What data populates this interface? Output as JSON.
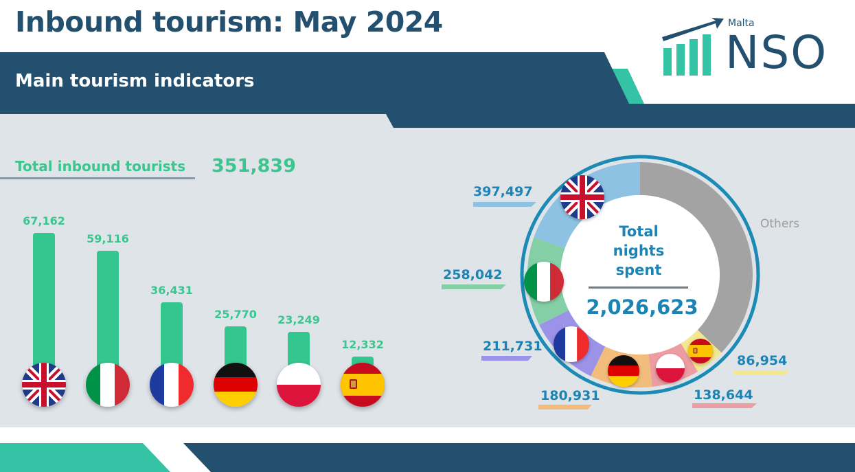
{
  "header": {
    "title": "Inbound tourism: May 2024",
    "subtitle": "Main tourism indicators",
    "logo_small": "Malta",
    "logo_text": "NSO"
  },
  "colors": {
    "navy": "#22506e",
    "teal": "#34c3a5",
    "green": "#33c68f",
    "panel": "#dfe4e9",
    "blue_text": "#1c84b5"
  },
  "total_tourists": {
    "label": "Total inbound tourists",
    "value": "351,839"
  },
  "donut_center": {
    "title": "Total nights spent",
    "value": "2,026,623",
    "others_label": "Others"
  },
  "chart_data": [
    {
      "type": "bar",
      "categories": [
        "United Kingdom",
        "Italy",
        "France",
        "Germany",
        "Poland",
        "Spain"
      ],
      "values": [
        67162,
        59116,
        36431,
        25770,
        23249,
        12332
      ],
      "labels": [
        "67,162",
        "59,116",
        "36,431",
        "25,770",
        "23,249",
        "12,332"
      ],
      "category_icons": [
        "uk-flag-icon",
        "italy-flag-icon",
        "france-flag-icon",
        "germany-flag-icon",
        "poland-flag-icon",
        "spain-flag-icon"
      ],
      "bar_color": "#33c68f",
      "ylim": [
        0,
        67162
      ]
    },
    {
      "type": "pie",
      "title": "Total nights spent",
      "total": "2,026,623",
      "slices": [
        {
          "category": "United Kingdom",
          "value": 397497,
          "label": "397,497",
          "color": "#8ec2e2",
          "icon": "uk-flag-icon"
        },
        {
          "category": "Italy",
          "value": 258042,
          "label": "258,042",
          "color": "#84cfa5",
          "icon": "italy-flag-icon"
        },
        {
          "category": "France",
          "value": 211731,
          "label": "211,731",
          "color": "#9c92e8",
          "icon": "france-flag-icon"
        },
        {
          "category": "Germany",
          "value": 180931,
          "label": "180,931",
          "color": "#f2bd7c",
          "icon": "germany-flag-icon"
        },
        {
          "category": "Poland",
          "value": 138644,
          "label": "138,644",
          "color": "#ec9da2",
          "icon": "poland-flag-icon"
        },
        {
          "category": "Spain",
          "value": 86954,
          "label": "86,954",
          "color": "#f3e790",
          "icon": "spain-flag-icon"
        },
        {
          "category": "Others",
          "value": 752824,
          "label": "Others",
          "color": "#a3a3a3"
        }
      ]
    }
  ]
}
